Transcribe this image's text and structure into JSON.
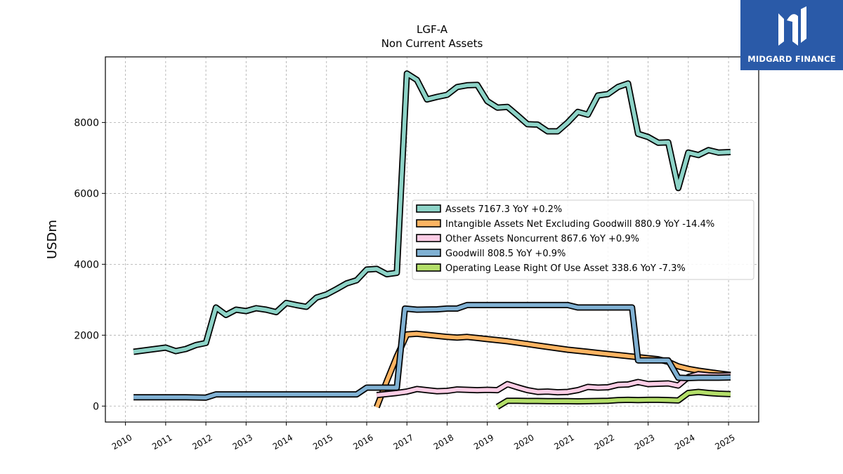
{
  "brand": {
    "name": "MIDGARD FINANCE",
    "bg_color": "#2a5aa8"
  },
  "chart_data": {
    "type": "line",
    "title": "LGF-A",
    "subtitle": "Non Current  Assets",
    "ylabel": "USDm",
    "xlabel": "",
    "xlim": [
      2009.5,
      2025.75
    ],
    "ylim": [
      -450,
      9850
    ],
    "yticks": [
      0,
      2000,
      4000,
      6000,
      8000
    ],
    "xticks": [
      2010,
      2011,
      2012,
      2013,
      2014,
      2015,
      2016,
      2017,
      2018,
      2019,
      2020,
      2021,
      2022,
      2023,
      2024,
      2025
    ],
    "grid": true,
    "legend_position": "center-right",
    "series": [
      {
        "name": "Assets",
        "legend": "Assets  7167.3 YoY +0.2%",
        "color": "#8dd3c7",
        "x": [
          2010.2,
          2011.0,
          2011.25,
          2011.5,
          2011.75,
          2012.0,
          2012.25,
          2012.5,
          2012.75,
          2013.0,
          2013.25,
          2013.5,
          2013.75,
          2014.0,
          2014.25,
          2014.5,
          2014.75,
          2015.0,
          2015.25,
          2015.5,
          2015.75,
          2016.0,
          2016.25,
          2016.5,
          2016.75,
          2017.0,
          2017.25,
          2017.5,
          2017.75,
          2018.0,
          2018.25,
          2018.5,
          2018.75,
          2019.0,
          2019.25,
          2019.5,
          2019.75,
          2020.0,
          2020.25,
          2020.5,
          2020.75,
          2021.0,
          2021.25,
          2021.5,
          2021.75,
          2022.0,
          2022.25,
          2022.5,
          2022.75,
          2023.0,
          2023.25,
          2023.5,
          2023.75,
          2024.0,
          2024.25,
          2024.5,
          2024.75,
          2025.05
        ],
        "y": [
          1530,
          1650,
          1550,
          1610,
          1720,
          1780,
          2780,
          2570,
          2720,
          2680,
          2760,
          2720,
          2650,
          2910,
          2850,
          2800,
          3060,
          3150,
          3300,
          3460,
          3550,
          3850,
          3870,
          3720,
          3760,
          9380,
          9200,
          8650,
          8720,
          8780,
          9000,
          9050,
          9060,
          8600,
          8420,
          8440,
          8200,
          7950,
          7940,
          7750,
          7750,
          8000,
          8300,
          8220,
          8760,
          8800,
          9000,
          9100,
          7680,
          7590,
          7430,
          7440,
          6150,
          7150,
          7080,
          7220,
          7150,
          7167
        ]
      },
      {
        "name": "Intangible Assets Net Excluding Goodwill",
        "legend": "Intangible Assets Net Excluding Goodwill  880.9 YoY -14.4%",
        "color": "#fdb462",
        "x": [
          2016.25,
          2016.5,
          2016.75,
          2017.0,
          2017.25,
          2017.5,
          2017.75,
          2018.0,
          2018.25,
          2018.5,
          2018.75,
          2019.0,
          2019.25,
          2019.5,
          2019.75,
          2020.0,
          2020.25,
          2020.5,
          2020.75,
          2021.0,
          2021.25,
          2021.5,
          2021.75,
          2022.0,
          2022.25,
          2022.5,
          2022.75,
          2023.0,
          2023.25,
          2023.5,
          2023.75,
          2024.0,
          2024.25,
          2024.5,
          2024.75,
          2025.05
        ],
        "y": [
          -30,
          700,
          1400,
          2020,
          2040,
          2010,
          1980,
          1950,
          1930,
          1950,
          1920,
          1890,
          1860,
          1830,
          1790,
          1750,
          1710,
          1670,
          1630,
          1590,
          1560,
          1530,
          1500,
          1470,
          1440,
          1410,
          1380,
          1350,
          1320,
          1250,
          1120,
          1050,
          1000,
          960,
          920,
          880
        ]
      },
      {
        "name": "Other Assets Noncurrent",
        "legend": "Other Assets Noncurrent  867.6 YoY +0.9%",
        "color": "#fccde5",
        "x": [
          2016.25,
          2016.5,
          2016.75,
          2017.0,
          2017.25,
          2017.5,
          2017.75,
          2018.0,
          2018.25,
          2018.5,
          2018.75,
          2019.0,
          2019.25,
          2019.5,
          2019.75,
          2020.0,
          2020.25,
          2020.5,
          2020.75,
          2021.0,
          2021.25,
          2021.5,
          2021.75,
          2022.0,
          2022.25,
          2022.5,
          2022.75,
          2023.0,
          2023.25,
          2023.5,
          2023.75,
          2024.0,
          2024.25,
          2024.5,
          2024.75,
          2025.05
        ],
        "y": [
          310,
          340,
          370,
          410,
          480,
          450,
          420,
          430,
          470,
          460,
          450,
          460,
          450,
          620,
          530,
          450,
          400,
          410,
          390,
          400,
          450,
          540,
          520,
          530,
          600,
          610,
          680,
          620,
          630,
          640,
          580,
          820,
          900,
          870,
          860,
          868
        ]
      },
      {
        "name": "Goodwill",
        "legend": "Goodwill  808.5 YoY +0.9%",
        "color": "#80b1d3",
        "x": [
          2010.2,
          2011.0,
          2011.5,
          2012.0,
          2012.25,
          2013.0,
          2014.0,
          2015.0,
          2015.75,
          2016.0,
          2016.25,
          2016.5,
          2016.75,
          2016.95,
          2017.25,
          2017.75,
          2018.0,
          2018.25,
          2018.5,
          2019.0,
          2019.5,
          2020.0,
          2020.5,
          2021.0,
          2021.25,
          2021.75,
          2022.0,
          2022.25,
          2022.6,
          2022.75,
          2023.0,
          2023.25,
          2023.5,
          2023.75,
          2024.0,
          2024.25,
          2024.5,
          2024.75,
          2025.05
        ],
        "y": [
          250,
          250,
          250,
          240,
          330,
          330,
          330,
          330,
          330,
          520,
          520,
          520,
          520,
          2750,
          2720,
          2730,
          2750,
          2750,
          2850,
          2850,
          2850,
          2850,
          2850,
          2850,
          2780,
          2780,
          2780,
          2780,
          2780,
          1290,
          1290,
          1290,
          1290,
          800,
          790,
          800,
          800,
          800,
          808
        ]
      },
      {
        "name": "Operating Lease Right Of Use Asset",
        "legend": "Operating Lease Right Of Use Asset  338.6 YoY -7.3%",
        "color": "#b3de69",
        "x": [
          2019.25,
          2019.5,
          2019.75,
          2020.0,
          2020.25,
          2020.5,
          2020.75,
          2021.0,
          2021.25,
          2021.5,
          2021.75,
          2022.0,
          2022.25,
          2022.5,
          2022.75,
          2023.0,
          2023.25,
          2023.5,
          2023.75,
          2024.0,
          2024.25,
          2024.5,
          2024.75,
          2025.05
        ],
        "y": [
          -20,
          150,
          150,
          145,
          145,
          140,
          140,
          140,
          135,
          140,
          145,
          150,
          170,
          175,
          170,
          175,
          175,
          170,
          160,
          370,
          400,
          370,
          350,
          339
        ]
      }
    ]
  }
}
